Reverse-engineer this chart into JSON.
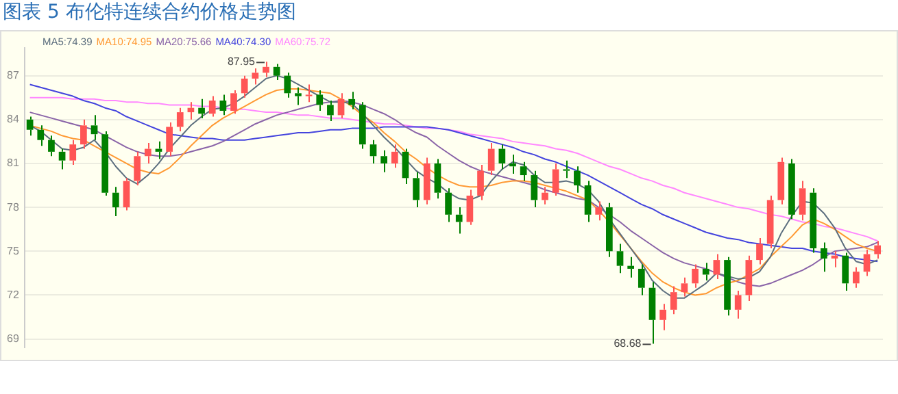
{
  "chart_data": {
    "type": "candlestick",
    "title": "图表 5 布伦特连续合约价格走势图",
    "categories": [
      null,
      null,
      null,
      null,
      null,
      null,
      null,
      null,
      null,
      null,
      null,
      null,
      null,
      null,
      null,
      null,
      null,
      null,
      null,
      null,
      null,
      null,
      null,
      null,
      null,
      null,
      null,
      null,
      null,
      null,
      null,
      null,
      null,
      null,
      null,
      null,
      null,
      null,
      null,
      null,
      null,
      null,
      null,
      null,
      null,
      null,
      null,
      null,
      null,
      null,
      null,
      null,
      null,
      null,
      null,
      null,
      null,
      null,
      null,
      null,
      null,
      null,
      null,
      null,
      null,
      null,
      null,
      null,
      null,
      null,
      null,
      null,
      null,
      null,
      null,
      null,
      null,
      null,
      null,
      null
    ],
    "ohlc": [
      [
        84.0,
        84.2,
        82.9,
        83.3
      ],
      [
        83.3,
        83.6,
        82.2,
        82.6
      ],
      [
        82.6,
        82.9,
        81.5,
        81.8
      ],
      [
        81.8,
        82.0,
        80.6,
        81.2
      ],
      [
        81.2,
        82.6,
        80.9,
        82.3
      ],
      [
        82.3,
        84.0,
        82.0,
        83.6
      ],
      [
        83.6,
        84.3,
        82.6,
        83.0
      ],
      [
        83.0,
        83.2,
        78.8,
        79.0
      ],
      [
        79.0,
        79.4,
        77.4,
        78.0
      ],
      [
        78.0,
        80.0,
        77.8,
        79.8
      ],
      [
        79.8,
        81.8,
        79.5,
        81.5
      ],
      [
        81.5,
        82.4,
        81.0,
        82.0
      ],
      [
        82.0,
        82.5,
        81.3,
        81.8
      ],
      [
        81.8,
        83.8,
        81.5,
        83.5
      ],
      [
        83.5,
        84.8,
        83.2,
        84.5
      ],
      [
        84.5,
        85.2,
        84.0,
        84.8
      ],
      [
        84.8,
        85.4,
        84.1,
        84.4
      ],
      [
        84.4,
        85.6,
        84.2,
        85.3
      ],
      [
        85.3,
        85.7,
        84.3,
        84.6
      ],
      [
        84.6,
        86.0,
        84.4,
        85.8
      ],
      [
        85.8,
        87.0,
        85.5,
        86.8
      ],
      [
        86.8,
        87.5,
        86.4,
        87.2
      ],
      [
        87.2,
        87.95,
        86.9,
        87.6
      ],
      [
        87.6,
        87.8,
        86.7,
        87.0
      ],
      [
        87.0,
        87.2,
        85.5,
        85.8
      ],
      [
        85.8,
        86.2,
        85.0,
        85.6
      ],
      [
        85.6,
        86.4,
        85.2,
        85.7
      ],
      [
        85.7,
        86.0,
        84.6,
        85.0
      ],
      [
        85.0,
        85.3,
        83.9,
        84.3
      ],
      [
        84.3,
        85.8,
        84.1,
        85.4
      ],
      [
        85.4,
        85.9,
        84.7,
        85.0
      ],
      [
        85.0,
        85.2,
        82.0,
        82.3
      ],
      [
        82.3,
        82.6,
        81.0,
        81.5
      ],
      [
        81.5,
        81.9,
        80.4,
        81.0
      ],
      [
        81.0,
        82.3,
        80.7,
        81.8
      ],
      [
        81.8,
        82.0,
        79.6,
        80.0
      ],
      [
        80.0,
        80.4,
        78.0,
        78.5
      ],
      [
        78.5,
        81.4,
        78.2,
        81.0
      ],
      [
        81.0,
        81.3,
        78.6,
        79.0
      ],
      [
        79.0,
        79.3,
        77.0,
        77.5
      ],
      [
        77.5,
        78.0,
        76.2,
        77.0
      ],
      [
        77.0,
        79.2,
        76.8,
        78.8
      ],
      [
        78.8,
        80.9,
        78.5,
        80.5
      ],
      [
        80.5,
        82.4,
        80.2,
        82.0
      ],
      [
        82.0,
        82.3,
        80.6,
        81.0
      ],
      [
        81.0,
        81.6,
        80.3,
        80.8
      ],
      [
        80.8,
        81.1,
        79.8,
        80.2
      ],
      [
        80.2,
        80.5,
        78.0,
        78.5
      ],
      [
        78.5,
        79.4,
        78.2,
        79.0
      ],
      [
        79.0,
        81.0,
        78.8,
        80.6
      ],
      [
        80.6,
        81.2,
        80.0,
        80.5
      ],
      [
        80.5,
        80.8,
        79.0,
        79.5
      ],
      [
        79.5,
        79.8,
        77.0,
        77.5
      ],
      [
        77.5,
        78.4,
        77.1,
        78.0
      ],
      [
        78.0,
        78.3,
        74.6,
        75.0
      ],
      [
        75.0,
        75.5,
        73.5,
        74.0
      ],
      [
        74.0,
        74.6,
        73.2,
        73.8
      ],
      [
        73.8,
        74.1,
        72.0,
        72.5
      ],
      [
        72.5,
        72.9,
        68.68,
        70.3
      ],
      [
        70.3,
        71.4,
        69.6,
        71.0
      ],
      [
        71.0,
        72.6,
        70.7,
        72.2
      ],
      [
        72.2,
        73.2,
        71.9,
        72.8
      ],
      [
        72.8,
        74.1,
        72.5,
        73.8
      ],
      [
        73.8,
        74.2,
        73.0,
        73.4
      ],
      [
        73.4,
        74.8,
        73.1,
        74.4
      ],
      [
        74.4,
        74.6,
        70.6,
        71.0
      ],
      [
        71.0,
        72.3,
        70.4,
        72.0
      ],
      [
        72.0,
        74.7,
        71.6,
        74.4
      ],
      [
        74.4,
        75.9,
        74.1,
        75.5
      ],
      [
        75.5,
        78.8,
        75.2,
        78.5
      ],
      [
        78.5,
        81.4,
        78.2,
        81.1
      ],
      [
        81.0,
        81.3,
        77.2,
        77.5
      ],
      [
        77.5,
        79.8,
        77.1,
        79.3
      ],
      [
        79.0,
        79.3,
        74.9,
        75.2
      ],
      [
        75.2,
        75.6,
        73.6,
        74.5
      ],
      [
        74.5,
        75.0,
        73.9,
        74.7
      ],
      [
        74.7,
        74.9,
        72.3,
        72.8
      ],
      [
        72.8,
        73.9,
        72.5,
        73.6
      ],
      [
        73.6,
        75.1,
        73.3,
        74.8
      ],
      [
        74.8,
        75.7,
        74.5,
        75.4
      ]
    ],
    "colors": [
      "#008000",
      "#008000",
      "#008000",
      "#008000",
      "#ff5555",
      "#ff5555",
      "#008000",
      "#008000",
      "#008000",
      "#ff5555",
      "#ff5555",
      "#ff5555",
      "#008000",
      "#ff5555",
      "#ff5555",
      "#ff5555",
      "#008000",
      "#ff5555",
      "#008000",
      "#ff5555",
      "#ff5555",
      "#ff5555",
      "#ff5555",
      "#008000",
      "#008000",
      "#008000",
      "#ff5555",
      "#008000",
      "#008000",
      "#ff5555",
      "#008000",
      "#008000",
      "#008000",
      "#008000",
      "#ff5555",
      "#008000",
      "#008000",
      "#ff5555",
      "#008000",
      "#008000",
      "#008000",
      "#ff5555",
      "#ff5555",
      "#ff5555",
      "#008000",
      "#008000",
      "#008000",
      "#008000",
      "#ff5555",
      "#ff5555",
      "#008000",
      "#008000",
      "#008000",
      "#ff5555",
      "#008000",
      "#008000",
      "#008000",
      "#008000",
      "#008000",
      "#ff5555",
      "#ff5555",
      "#ff5555",
      "#ff5555",
      "#008000",
      "#ff5555",
      "#008000",
      "#ff5555",
      "#ff5555",
      "#ff5555",
      "#ff5555",
      "#ff5555",
      "#008000",
      "#ff5555",
      "#008000",
      "#008000",
      "#ff5555",
      "#008000",
      "#ff5555",
      "#ff5555",
      "#ff5555"
    ],
    "series": [
      {
        "name": "MA5:74.39",
        "color": "#5c6e7e",
        "type": "line",
        "values": [
          83.6,
          83.2,
          82.6,
          82.0,
          81.9,
          82.1,
          82.6,
          81.8,
          80.8,
          80.0,
          79.6,
          80.2,
          81.0,
          82.0,
          82.8,
          83.6,
          84.2,
          84.7,
          84.8,
          85.1,
          85.6,
          86.2,
          86.8,
          87.0,
          86.8,
          86.4,
          86.0,
          85.6,
          85.2,
          85.2,
          85.1,
          84.4,
          83.6,
          82.8,
          82.1,
          81.3,
          80.5,
          80.0,
          79.6,
          79.0,
          78.6,
          78.5,
          78.8,
          79.8,
          80.6,
          81.1,
          80.9,
          80.2,
          79.7,
          79.7,
          79.8,
          79.6,
          79.2,
          78.4,
          77.2,
          76.2,
          75.2,
          74.2,
          73.0,
          72.3,
          71.8,
          71.8,
          72.3,
          72.8,
          73.5,
          73.3,
          73.1,
          73.2,
          73.6,
          74.6,
          76.2,
          77.4,
          78.4,
          78.3,
          77.6,
          76.6,
          75.2,
          74.3,
          74.1,
          74.4
        ]
      },
      {
        "name": "MA10:74.95",
        "color": "#ff9933",
        "type": "line",
        "values": [
          83.6,
          83.4,
          83.2,
          82.9,
          82.7,
          82.6,
          82.2,
          81.8,
          81.4,
          81.0,
          80.6,
          80.4,
          80.3,
          80.7,
          81.4,
          82.2,
          82.9,
          83.6,
          84.1,
          84.5,
          84.9,
          85.3,
          85.7,
          86.0,
          86.1,
          86.1,
          86.0,
          85.9,
          85.8,
          85.4,
          84.9,
          84.3,
          83.8,
          83.1,
          82.5,
          81.8,
          81.3,
          80.7,
          80.2,
          79.8,
          79.5,
          79.4,
          79.4,
          79.5,
          79.7,
          79.8,
          79.8,
          79.7,
          79.5,
          79.3,
          79.1,
          78.8,
          78.5,
          77.8,
          77.0,
          76.1,
          75.2,
          74.3,
          73.5,
          72.9,
          72.5,
          72.2,
          72.0,
          72.1,
          72.5,
          72.8,
          73.0,
          73.4,
          73.8,
          74.6,
          75.3,
          76.0,
          76.8,
          77.2,
          76.9,
          76.5,
          76.0,
          75.5,
          75.2,
          75.0
        ]
      },
      {
        "name": "MA20:75.66",
        "color": "#8a64a8",
        "type": "line",
        "values": [
          84.5,
          84.3,
          84.1,
          83.9,
          83.7,
          83.5,
          83.3,
          82.9,
          82.5,
          82.1,
          81.8,
          81.6,
          81.5,
          81.5,
          81.6,
          81.8,
          82.0,
          82.2,
          82.5,
          82.9,
          83.3,
          83.7,
          84.0,
          84.3,
          84.5,
          84.7,
          84.9,
          85.1,
          85.2,
          85.3,
          85.2,
          85.0,
          84.7,
          84.4,
          84.0,
          83.5,
          83.1,
          82.8,
          82.2,
          81.7,
          81.2,
          80.8,
          80.5,
          80.3,
          80.1,
          79.9,
          79.7,
          79.5,
          79.2,
          79.0,
          78.8,
          78.6,
          78.5,
          78.0,
          77.5,
          77.0,
          76.4,
          75.9,
          75.4,
          74.9,
          74.5,
          74.2,
          74.0,
          73.8,
          73.5,
          73.2,
          72.9,
          72.7,
          72.6,
          72.8,
          73.1,
          73.4,
          73.7,
          74.1,
          74.6,
          75.0,
          75.1,
          75.2,
          75.3,
          75.6
        ]
      },
      {
        "name": "MA40:74.30",
        "color": "#4444dd",
        "type": "line",
        "values": [
          86.4,
          86.2,
          86.0,
          85.8,
          85.6,
          85.3,
          85.1,
          84.8,
          84.6,
          84.2,
          83.9,
          83.6,
          83.3,
          83.0,
          82.9,
          82.8,
          82.7,
          82.7,
          82.6,
          82.6,
          82.6,
          82.7,
          82.8,
          82.9,
          83.0,
          83.1,
          83.1,
          83.2,
          83.3,
          83.3,
          83.4,
          83.4,
          83.4,
          83.5,
          83.5,
          83.5,
          83.5,
          83.5,
          83.4,
          83.3,
          83.1,
          82.9,
          82.7,
          82.5,
          82.3,
          82.1,
          81.8,
          81.6,
          81.3,
          81.1,
          80.8,
          80.5,
          80.2,
          79.8,
          79.4,
          79.0,
          78.6,
          78.2,
          77.9,
          77.5,
          77.2,
          76.9,
          76.6,
          76.3,
          76.1,
          75.9,
          75.8,
          75.6,
          75.5,
          75.4,
          75.3,
          75.2,
          75.2,
          75.0,
          74.9,
          74.8,
          74.6,
          74.5,
          74.4,
          74.3
        ]
      },
      {
        "name": "MA60:75.72",
        "color": "#ff88ff",
        "type": "line",
        "values": [
          85.5,
          85.5,
          85.5,
          85.5,
          85.4,
          85.4,
          85.4,
          85.3,
          85.3,
          85.2,
          85.2,
          85.1,
          85.1,
          85.0,
          85.0,
          85.0,
          84.9,
          84.9,
          84.8,
          84.7,
          84.7,
          84.6,
          84.5,
          84.5,
          84.4,
          84.3,
          84.3,
          84.2,
          84.1,
          84.1,
          84.0,
          83.9,
          83.8,
          83.7,
          83.7,
          83.6,
          83.5,
          83.4,
          83.4,
          83.3,
          83.2,
          83.0,
          82.9,
          82.8,
          82.7,
          82.5,
          82.4,
          82.3,
          82.2,
          82.0,
          81.9,
          81.7,
          81.4,
          81.1,
          80.8,
          80.6,
          80.3,
          80.0,
          79.8,
          79.5,
          79.3,
          79.0,
          78.8,
          78.6,
          78.4,
          78.2,
          78.0,
          77.9,
          77.7,
          77.5,
          77.4,
          77.2,
          77.0,
          76.9,
          76.7,
          76.6,
          76.4,
          76.2,
          76.0,
          75.7
        ]
      }
    ],
    "annotations": [
      "87.95",
      "68.68"
    ],
    "ylim": [
      68.4,
      88.9
    ],
    "yticks": [
      69,
      72,
      75,
      78,
      81,
      84,
      87
    ],
    "grid": "y",
    "legend": "top left",
    "tick_labels": "y"
  }
}
